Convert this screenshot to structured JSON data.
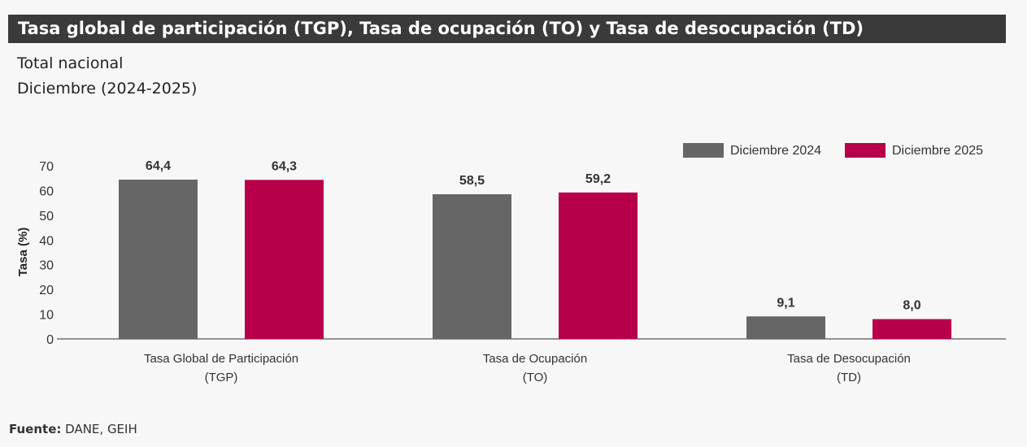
{
  "header": {
    "title": "Tasa global de participación (TGP), Tasa de ocupación (TO) y Tasa de desocupación (TD)"
  },
  "subtitle": {
    "line1": "Total nacional",
    "line2": "Diciembre (2024-2025)"
  },
  "source": {
    "label": "Fuente:",
    "value": "DANE, GEIH"
  },
  "chart_data": {
    "type": "bar",
    "categories": [
      [
        "Tasa Global de Participación",
        "(TGP)"
      ],
      [
        "Tasa de Ocupación",
        "(TO)"
      ],
      [
        "Tasa de Desocupación",
        "(TD)"
      ]
    ],
    "series": [
      {
        "name": "Diciembre  2024",
        "values": [
          64.4,
          58.5,
          9.1
        ],
        "labels": [
          "64,4",
          "58,5",
          "9,1"
        ],
        "color": "#666666"
      },
      {
        "name": "Diciembre  2025",
        "values": [
          64.3,
          59.2,
          8.0
        ],
        "labels": [
          "64,3",
          "59,2",
          "8,0"
        ],
        "color": "#b8004a"
      }
    ],
    "ylabel": "Tasa (%)",
    "ylim": [
      0,
      70
    ],
    "yticks": [
      0,
      10,
      20,
      30,
      40,
      50,
      60,
      70
    ],
    "grid": false,
    "legend": "top-right"
  }
}
